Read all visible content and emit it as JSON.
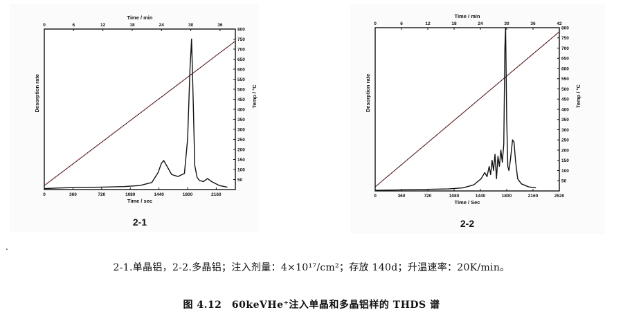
{
  "bullet": ".",
  "caption": {
    "line": "2-1.单晶铝，2-2.多晶铝；注入剂量：4×10¹⁷/cm²；存放 140d；升温速率：20K/min。",
    "title": "图 4.12　60keVHe⁺注入单晶和多晶铝样的 THDS 谱"
  },
  "chart_data": [
    {
      "type": "line",
      "panel_label": "2-1",
      "xlabel": "Time / sec",
      "ylabel": "Desorption rate",
      "top_axis_label": "Time / min",
      "right_axis_label": "Temp / °C",
      "xlim": [
        0,
        2400
      ],
      "x_ticks": [
        0,
        360,
        720,
        1080,
        1440,
        1800,
        2160
      ],
      "top_ticks": [
        0,
        6,
        12,
        18,
        24,
        30,
        36
      ],
      "right_ticks": [
        50,
        100,
        150,
        200,
        250,
        300,
        350,
        400,
        450,
        500,
        550,
        600,
        650,
        700,
        750,
        800
      ],
      "temp_lim": [
        0,
        800
      ],
      "series": [
        {
          "x": [
            0,
            2400
          ],
          "y": [
            20,
            740
          ]
        },
        {
          "x": [
            0,
            200,
            400,
            700,
            1000,
            1200,
            1350,
            1430,
            1470,
            1500,
            1550,
            1600,
            1680,
            1760,
            1800,
            1830,
            1850,
            1870,
            1890,
            1920,
            1950,
            2000,
            2050,
            2100,
            2200,
            2300
          ],
          "y": [
            5,
            8,
            10,
            12,
            15,
            20,
            35,
            85,
            130,
            145,
            110,
            75,
            65,
            80,
            250,
            600,
            750,
            450,
            120,
            60,
            45,
            40,
            55,
            40,
            20,
            12
          ]
        }
      ]
    },
    {
      "type": "line",
      "panel_label": "2-2",
      "xlabel": "Time / Sec",
      "ylabel": "Desorption rate",
      "top_axis_label": "Time / min",
      "right_axis_label": "Temp / °C",
      "xlim": [
        0,
        2520
      ],
      "x_ticks": [
        0,
        360,
        720,
        1080,
        1440,
        1800,
        2160,
        2520
      ],
      "top_ticks": [
        0,
        6,
        12,
        18,
        24,
        30,
        36,
        42
      ],
      "right_ticks": [
        50,
        100,
        150,
        200,
        250,
        300,
        350,
        400,
        450,
        500,
        550,
        600,
        650,
        700,
        750,
        800
      ],
      "temp_lim": [
        0,
        800
      ],
      "series": [
        {
          "x": [
            0,
            2520
          ],
          "y": [
            20,
            780
          ]
        },
        {
          "x": [
            0,
            300,
            700,
            1000,
            1200,
            1350,
            1450,
            1500,
            1530,
            1560,
            1580,
            1600,
            1620,
            1640,
            1660,
            1680,
            1700,
            1720,
            1740,
            1760,
            1775,
            1785,
            1800,
            1815,
            1830,
            1850,
            1880,
            1900,
            1920,
            1950,
            2000,
            2100,
            2200
          ],
          "y": [
            3,
            5,
            8,
            10,
            15,
            30,
            60,
            90,
            70,
            120,
            80,
            150,
            100,
            180,
            60,
            170,
            120,
            200,
            140,
            230,
            700,
            800,
            350,
            120,
            100,
            150,
            250,
            240,
            150,
            60,
            35,
            20,
            15
          ]
        }
      ]
    }
  ]
}
